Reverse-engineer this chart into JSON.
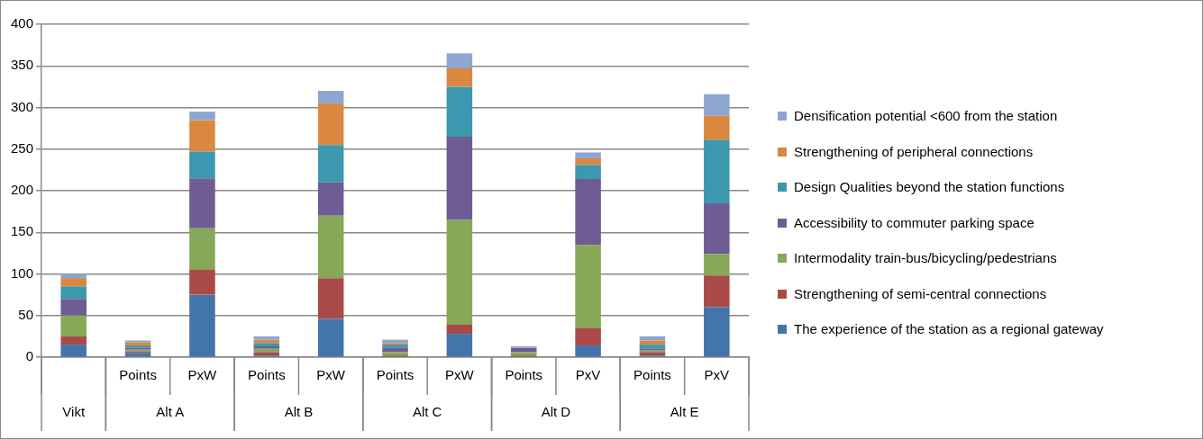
{
  "chart_data": {
    "type": "bar",
    "stacked": true,
    "categories": [
      null,
      "Points",
      "PxW",
      "Points",
      "PxW",
      "Points",
      "PxW",
      "Points",
      "PxV",
      "Points",
      "PxV"
    ],
    "annotations": [
      "Vikt",
      "Alt A",
      "Alt B",
      "Alt C",
      "Alt D",
      "Alt E"
    ],
    "series": [
      {
        "name": "The experience of the station as a regional gateway",
        "color": "#4374aa",
        "values": [
          15,
          5,
          75,
          2,
          46,
          null,
          28,
          0,
          14,
          2,
          60
        ]
      },
      {
        "name": "Strengthening of semi-central  connections",
        "color": "#aa4a48",
        "values": [
          10,
          2,
          30,
          4,
          49,
          2,
          11,
          2,
          21,
          4,
          38
        ]
      },
      {
        "name": "Intermodality train-bus/bicycling/pedestrians",
        "color": "#86a858",
        "values": [
          25,
          2,
          50,
          4,
          75,
          4,
          126,
          4,
          100,
          2,
          26
        ]
      },
      {
        "name": "Accessibility to commuter parking space",
        "color": "#6e5c94",
        "values": [
          20,
          2,
          60,
          3,
          40,
          5,
          100,
          5,
          79,
          2,
          61
        ]
      },
      {
        "name": "Design Qualities beyond the station functions",
        "color": "#3c98ae",
        "values": [
          15,
          3,
          32,
          4,
          45,
          4,
          60,
          0,
          17,
          5,
          76
        ]
      },
      {
        "name": "Strengthening of  peripheral connections",
        "color": "#da8742",
        "values": [
          10,
          4,
          38,
          4,
          50,
          2,
          22,
          0,
          8,
          5,
          29
        ]
      },
      {
        "name": "Densification potential <600 from the station",
        "color": "#8ca6d0",
        "values": [
          5,
          2,
          10,
          4,
          15,
          4,
          18,
          2,
          7,
          5,
          26
        ]
      }
    ],
    "ylim": [
      0,
      400
    ],
    "yticks": [
      0,
      50,
      100,
      150,
      200,
      250,
      300,
      350,
      400
    ],
    "grid": "y",
    "legend": "right"
  }
}
